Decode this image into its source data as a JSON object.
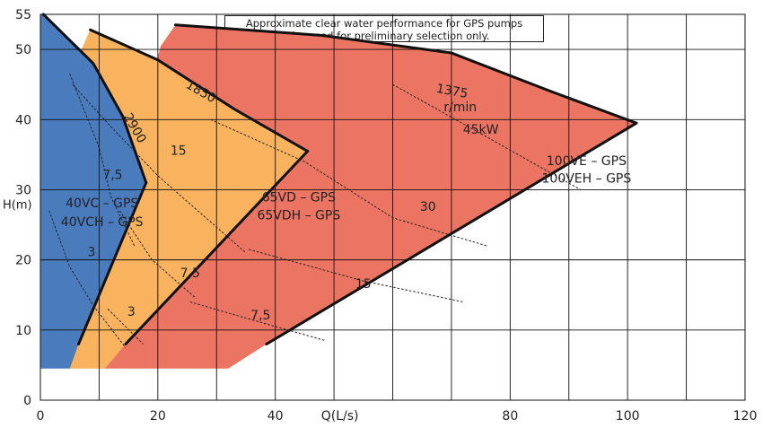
{
  "chart_data": {
    "type": "area",
    "note": [
      "Approximate clear water performance for GPS pumps",
      "to be used for preliminary selection only."
    ],
    "xlabel": "Q(L/s)",
    "ylabel": "H(m)",
    "xlim": [
      0,
      120
    ],
    "ylim": [
      0,
      55
    ],
    "x_ticks": [
      0,
      20,
      40,
      80,
      100,
      120
    ],
    "y_ticks": [
      0,
      10,
      20,
      30,
      40,
      50,
      55
    ],
    "grid": true,
    "colors": {
      "small": "#4a7bbd",
      "medium": "#f9b25e",
      "large": "#ec7463",
      "outline": "#111111"
    },
    "regions": [
      {
        "name": "large",
        "models": [
          "100VE – GPS",
          "100VEH – GPS"
        ],
        "speed": "1375",
        "speed_unit": "r/min",
        "power": "45kW",
        "boundary": [
          [
            11,
            4.5
          ],
          [
            32,
            4.5
          ],
          [
            38.5,
            8
          ],
          [
            101.5,
            39.5
          ],
          [
            87,
            44
          ],
          [
            70,
            49.5
          ],
          [
            48,
            52
          ],
          [
            23,
            53.5
          ],
          [
            20.5,
            50.5
          ],
          [
            14,
            31
          ],
          [
            12,
            28
          ],
          [
            11,
            4.5
          ]
        ],
        "top_curve": [
          [
            23,
            53.5
          ],
          [
            48,
            52
          ],
          [
            70,
            49.5
          ],
          [
            87,
            44
          ],
          [
            101.5,
            39.5
          ]
        ],
        "right_curve": [
          [
            101.5,
            39.5
          ],
          [
            38.5,
            8
          ]
        ]
      },
      {
        "name": "medium",
        "models": [
          "65VD – GPS",
          "65VDH – GPS"
        ],
        "speed": "1850",
        "boundary": [
          [
            5,
            4.5
          ],
          [
            11,
            4.5
          ],
          [
            14.5,
            8
          ],
          [
            45.5,
            35.5
          ],
          [
            33,
            41.5
          ],
          [
            20,
            48.5
          ],
          [
            8.5,
            52.8
          ],
          [
            7,
            50
          ],
          [
            6.5,
            41
          ],
          [
            6,
            9
          ],
          [
            5,
            4.5
          ]
        ],
        "top_curve": [
          [
            8.5,
            52.8
          ],
          [
            20,
            48.5
          ],
          [
            33,
            41.5
          ],
          [
            45.5,
            35.5
          ]
        ],
        "right_curve": [
          [
            45.5,
            35.5
          ],
          [
            14.5,
            8
          ]
        ]
      },
      {
        "name": "small",
        "models": [
          "40VC – GPS",
          "40VCH – GPS"
        ],
        "speed": "2900",
        "boundary": [
          [
            0,
            4.5
          ],
          [
            5,
            4.5
          ],
          [
            6.5,
            8
          ],
          [
            18,
            31
          ],
          [
            14,
            40.5
          ],
          [
            9,
            48
          ],
          [
            0.5,
            55
          ],
          [
            0,
            55
          ],
          [
            0,
            4.5
          ]
        ],
        "top_curve": [
          [
            0.5,
            55
          ],
          [
            9,
            48
          ],
          [
            14,
            40.5
          ],
          [
            18,
            31
          ]
        ],
        "right_curve": [
          [
            18,
            31
          ],
          [
            6.5,
            8
          ]
        ]
      }
    ],
    "power_lines": [
      {
        "label": "7,5",
        "points": [
          [
            5,
            46.5
          ],
          [
            10,
            36
          ],
          [
            12,
            29
          ],
          [
            16,
            22
          ]
        ],
        "label_at": [
          12.3,
          31.5
        ]
      },
      {
        "label": "3",
        "points": [
          [
            1.5,
            27
          ],
          [
            5,
            19
          ],
          [
            9,
            13.5
          ],
          [
            14.5,
            7.5
          ]
        ],
        "label_at": [
          8.7,
          20.5
        ]
      },
      {
        "label": "3",
        "points": [
          [
            11.5,
            13
          ],
          [
            17.5,
            8
          ]
        ],
        "label_at": [
          15.5,
          12
        ]
      },
      {
        "label": "15",
        "points": [
          [
            5.5,
            45
          ],
          [
            12,
            39
          ],
          [
            20,
            32
          ],
          [
            35,
            21
          ]
        ],
        "label_at": [
          23.5,
          35
        ]
      },
      {
        "label": "7,5",
        "points": [
          [
            13.5,
            27
          ],
          [
            19,
            20
          ],
          [
            26.5,
            14.5
          ]
        ],
        "label_at": [
          25.5,
          17.5
        ]
      },
      {
        "label": "30",
        "points": [
          [
            29,
            40
          ],
          [
            45,
            34
          ],
          [
            60,
            26
          ],
          [
            76,
            22
          ]
        ],
        "label_at": [
          66,
          27
        ]
      },
      {
        "label": "15",
        "points": [
          [
            35.5,
            21.5
          ],
          [
            55,
            17
          ],
          [
            72,
            14
          ]
        ],
        "label_at": [
          55,
          16
        ]
      },
      {
        "label": "7,5",
        "points": [
          [
            25.5,
            14
          ],
          [
            40,
            10.5
          ],
          [
            48.5,
            8.5
          ]
        ],
        "label_at": [
          37.5,
          11.5
        ]
      },
      {
        "label": "",
        "points": [
          [
            60,
            45
          ],
          [
            75,
            38
          ],
          [
            92,
            30
          ]
        ],
        "label_at": [
          0,
          0
        ]
      }
    ],
    "speed_labels": [
      {
        "text": "2900",
        "at": [
          15.5,
          38.5
        ],
        "rotate": 60
      },
      {
        "text": "1850",
        "at": [
          27,
          43.5
        ],
        "rotate": 30
      },
      {
        "text": "1375",
        "at": [
          70,
          43.5
        ],
        "rotate": 10
      }
    ],
    "model_labels": [
      {
        "text": "40VC – GPS",
        "at": [
          10.5,
          27.5
        ]
      },
      {
        "text": "40VCH – GPS",
        "at": [
          10.5,
          24.8
        ]
      },
      {
        "text": "65VD – GPS",
        "at": [
          44,
          28.3
        ]
      },
      {
        "text": "65VDH – GPS",
        "at": [
          44,
          25.8
        ]
      },
      {
        "text": "100VE – GPS",
        "at": [
          93,
          33.5
        ]
      },
      {
        "text": "100VEH – GPS",
        "at": [
          93,
          31
        ]
      }
    ],
    "extra_labels": [
      {
        "text": "r/min",
        "at": [
          71.5,
          41.2
        ]
      },
      {
        "text": "45kW",
        "at": [
          75,
          38
        ]
      }
    ]
  }
}
